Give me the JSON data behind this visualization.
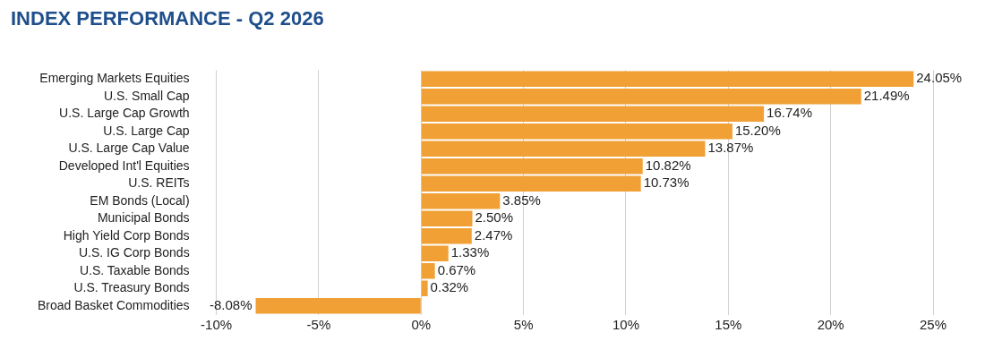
{
  "chart_data": {
    "type": "bar",
    "orientation": "horizontal",
    "title": "INDEX PERFORMANCE - Q2 2026",
    "categories": [
      "Emerging Markets Equities",
      "U.S. Small Cap",
      "U.S. Large Cap Growth",
      "U.S. Large Cap",
      "U.S. Large Cap Value",
      "Developed Int'l Equities",
      "U.S. REITs",
      "EM Bonds (Local)",
      "Municipal Bonds",
      "High Yield Corp Bonds",
      "U.S. IG Corp Bonds",
      "U.S. Taxable Bonds",
      "U.S. Treasury Bonds",
      "Broad Basket Commodities"
    ],
    "values": [
      24.05,
      21.49,
      16.74,
      15.2,
      13.87,
      10.82,
      10.73,
      3.85,
      2.5,
      2.47,
      1.33,
      0.67,
      0.32,
      -8.08
    ],
    "value_labels": [
      "24.05%",
      "21.49%",
      "16.74%",
      "15.20%",
      "13.87%",
      "10.82%",
      "10.73%",
      "3.85%",
      "2.50%",
      "2.47%",
      "1.33%",
      "0.67%",
      "0.32%",
      "-8.08%"
    ],
    "color": "#f0a035",
    "xlim": [
      -10,
      25
    ],
    "xticks": [
      {
        "value": -10,
        "label": "-10%"
      },
      {
        "value": -5,
        "label": "-5%"
      },
      {
        "value": 0,
        "label": "0%"
      },
      {
        "value": 5,
        "label": "5%"
      },
      {
        "value": 10,
        "label": "10%"
      },
      {
        "value": 15,
        "label": "15%"
      },
      {
        "value": 20,
        "label": "20%"
      },
      {
        "value": 25,
        "label": "25%"
      }
    ],
    "grid": "x",
    "legend": false
  }
}
